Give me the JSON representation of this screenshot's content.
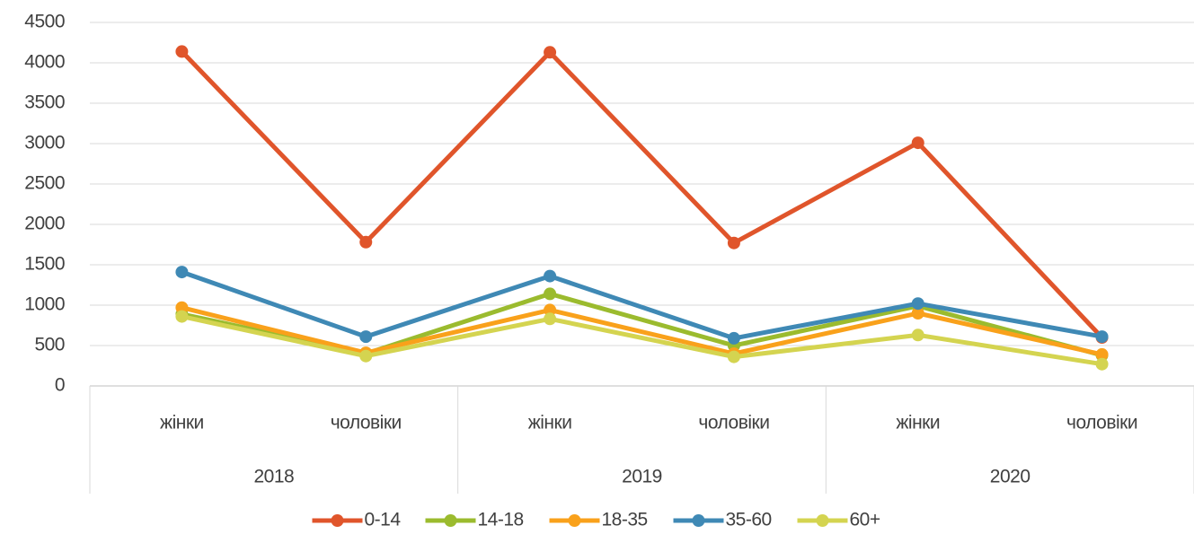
{
  "chart_data": {
    "type": "line",
    "categories": [
      "жінки",
      "чоловіки",
      "жінки",
      "чоловіки",
      "жінки",
      "чоловіки"
    ],
    "groups": [
      "2018",
      "2019",
      "2020"
    ],
    "series": [
      {
        "name": "0-14",
        "color": "#e0552b",
        "values": [
          4140,
          1780,
          4130,
          1770,
          3010,
          600
        ]
      },
      {
        "name": "14-18",
        "color": "#9bbb2e",
        "values": [
          890,
          400,
          1140,
          500,
          990,
          380
        ]
      },
      {
        "name": "18-35",
        "color": "#f9a11b",
        "values": [
          970,
          410,
          940,
          400,
          900,
          390
        ]
      },
      {
        "name": "35-60",
        "color": "#3f89b5",
        "values": [
          1410,
          610,
          1360,
          590,
          1020,
          610
        ]
      },
      {
        "name": "60+",
        "color": "#d4d450",
        "values": [
          860,
          370,
          830,
          360,
          630,
          270
        ]
      }
    ],
    "ylim": [
      0,
      4500
    ],
    "yticks": [
      0,
      500,
      1000,
      1500,
      2000,
      2500,
      3000,
      3500,
      4000,
      4500
    ],
    "grid": true,
    "legend": "bottom"
  }
}
